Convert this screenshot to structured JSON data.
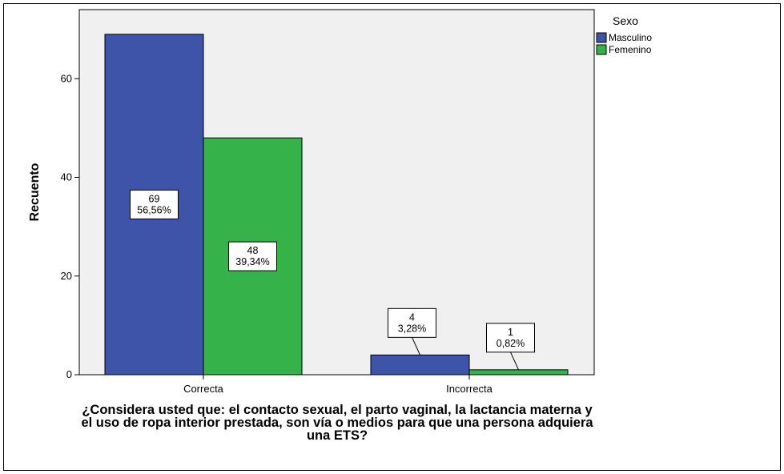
{
  "chart_data": {
    "type": "bar",
    "categories": [
      "Correcta",
      "Incorrecta"
    ],
    "series": [
      {
        "name": "Masculino",
        "values": [
          69,
          4
        ],
        "labels": [
          "56,56%",
          "3,28%"
        ],
        "color": "#3d54a8"
      },
      {
        "name": "Femenino",
        "values": [
          48,
          1
        ],
        "labels": [
          "39,34%",
          "0,82%"
        ],
        "color": "#35b34a"
      }
    ],
    "title": "",
    "xlabel": "¿Considera usted que: el contacto sexual, el parto vaginal, la lactancia materna y el uso de ropa interior prestada, son vía o medios para que una persona adquiera una ETS?",
    "ylabel": "Recuento",
    "ylim": [
      0,
      74
    ],
    "yticks": [
      0,
      20,
      40,
      60
    ],
    "legend_title": "Sexo",
    "legend_position": "top-right",
    "plot_background": "#f0f0f0",
    "grid": false
  }
}
